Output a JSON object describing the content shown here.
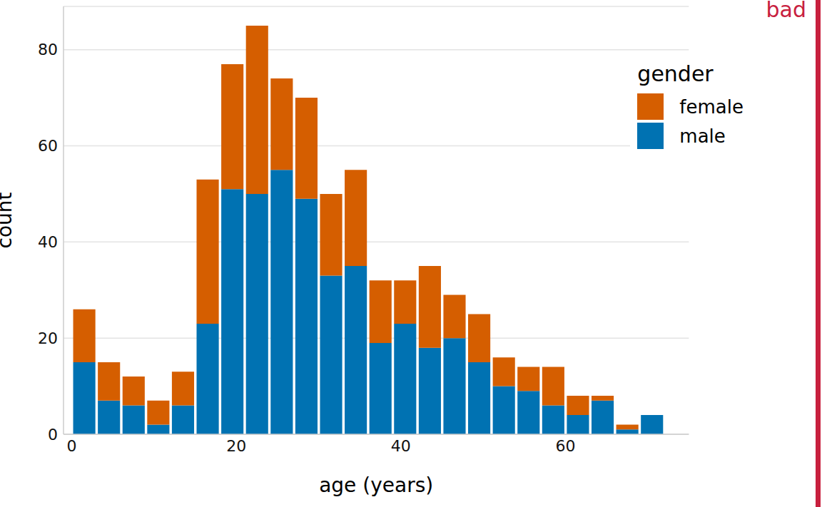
{
  "chart_data": {
    "type": "bar",
    "x_label": "age (years)",
    "y_label": "count",
    "legend_title": "gender",
    "annotation": "bad",
    "bins": [
      0,
      3,
      6,
      9,
      12,
      15,
      18,
      21,
      24,
      27,
      30,
      33,
      36,
      39,
      42,
      45,
      48,
      51,
      54,
      57,
      60,
      63,
      66,
      69,
      72
    ],
    "series": [
      {
        "name": "female",
        "color": "#D55E00",
        "values": [
          11,
          8,
          6,
          5,
          7,
          30,
          26,
          35,
          19,
          21,
          17,
          20,
          13,
          9,
          17,
          9,
          10,
          6,
          5,
          8,
          4,
          1,
          1,
          0
        ]
      },
      {
        "name": "male",
        "color": "#0072B2",
        "values": [
          15,
          7,
          6,
          2,
          6,
          23,
          51,
          50,
          55,
          49,
          33,
          35,
          19,
          23,
          18,
          20,
          15,
          10,
          9,
          6,
          4,
          7,
          1,
          4
        ]
      }
    ],
    "xlim": [
      -1,
      75
    ],
    "xticks": [
      0,
      20,
      40,
      60
    ],
    "ylim": [
      0,
      89
    ],
    "yticks": [
      0,
      20,
      40,
      60,
      80
    ],
    "stacked": true,
    "grid": true,
    "legend": "upper right"
  }
}
